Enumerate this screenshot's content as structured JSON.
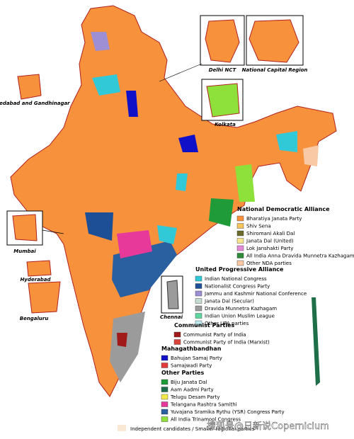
{
  "insets": [
    {
      "label": "Delhi NCT"
    },
    {
      "label": "National Capital Region"
    },
    {
      "label": "Ahmedabad and Gandhinagar"
    },
    {
      "label": "Kolkata"
    },
    {
      "label": "Mumbai"
    },
    {
      "label": "Hyderabad"
    },
    {
      "label": "Bengaluru"
    },
    {
      "label": "Chennai"
    }
  ],
  "legend": [
    {
      "group": "National Democratic Alliance",
      "items": [
        {
          "name": "Bharatiya Janata Party",
          "color": "#f7913b"
        },
        {
          "name": "Shiv Sena",
          "color": "#f5c45b"
        },
        {
          "name": "Shiromani Akali Dal",
          "color": "#6b6b2a"
        },
        {
          "name": "Janata Dal (United)",
          "color": "#f6e58d"
        },
        {
          "name": "Lok Janshakti Party",
          "color": "#e58ad8"
        },
        {
          "name": "All India Anna Dravida Munnetra Kazhagam",
          "color": "#2e8b3a"
        },
        {
          "name": "Other NDA parties",
          "color": "#f8c9a4"
        }
      ]
    },
    {
      "group": "United Progressive Alliance",
      "items": [
        {
          "name": "Indian National Congress",
          "color": "#31c9d8"
        },
        {
          "name": "Nationalist Congress Party",
          "color": "#1c4f96"
        },
        {
          "name": "Jammu and Kashmir National Conference",
          "color": "#9e8ed4"
        },
        {
          "name": "Janata Dal (Secular)",
          "color": "#c6dcd0"
        },
        {
          "name": "Dravida Munnetra Kazhagam",
          "color": "#9b9b9b"
        },
        {
          "name": "Indian Union Muslim League",
          "color": "#5dd6a0"
        },
        {
          "name": "Other UPA parties",
          "color": "#bfe9f0"
        }
      ]
    },
    {
      "group": "Communist Parties",
      "items": [
        {
          "name": "Communist Party of India",
          "color": "#a11a1a"
        },
        {
          "name": "Communist Party of India (Marxist)",
          "color": "#d9443a"
        }
      ]
    },
    {
      "group": "Mahagathbandhan",
      "items": [
        {
          "name": "Bahujan Samaj Party",
          "color": "#1010c8"
        },
        {
          "name": "Samajwadi Party",
          "color": "#e33b3b"
        }
      ]
    },
    {
      "group": "Other Parties",
      "items": [
        {
          "name": "Biju Janata Dal",
          "color": "#1f9b3a"
        },
        {
          "name": "Aam Aadmi Party",
          "color": "#1e6e4a"
        },
        {
          "name": "Telugu Desam Party",
          "color": "#f4e94a"
        },
        {
          "name": "Telangana Rashtra Samithi",
          "color": "#e7399a"
        },
        {
          "name": "Yuvajana Sramika Rythu (YSR) Congress Party",
          "color": "#2a5fa0"
        },
        {
          "name": "All India Trinamool Congress",
          "color": "#8ee03a"
        }
      ]
    }
  ],
  "footer": "Independent candidates / Smaller regional parties",
  "watermark": "搜狐号@日新说Copernicium"
}
